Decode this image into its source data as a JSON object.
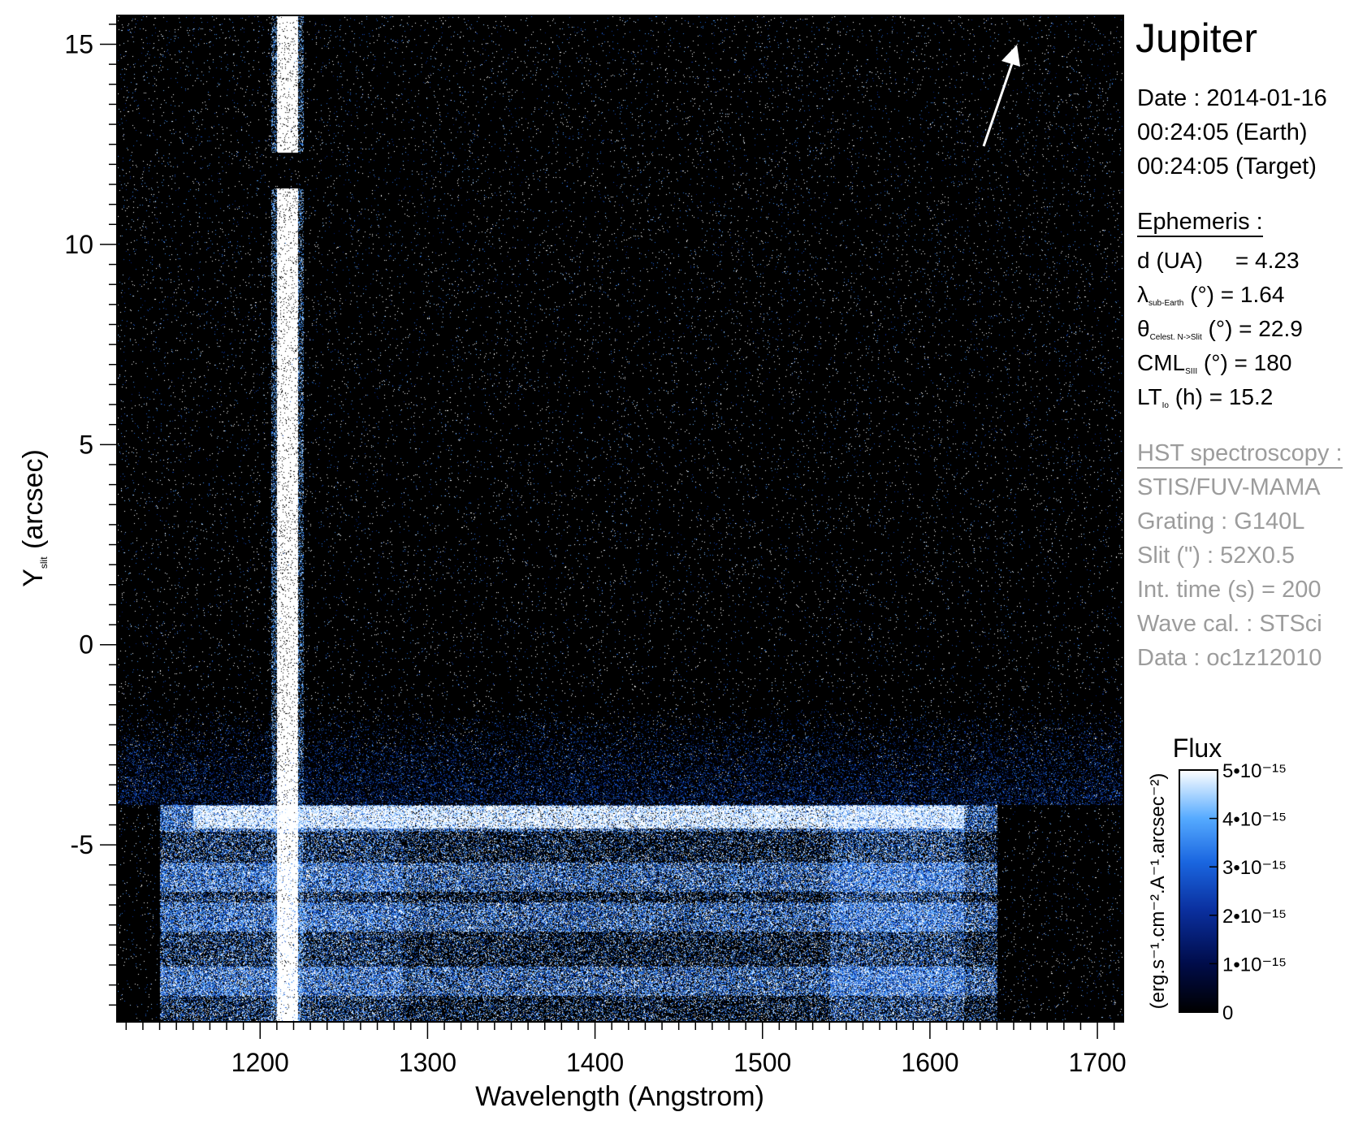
{
  "chart_data": {
    "type": "heatmap",
    "title": "Jupiter",
    "xlabel": "Wavelength (Angstrom)",
    "ylabel": "Y",
    "ylabel_sub": "slit",
    "ylabel_unit": " (arcsec)",
    "xlim": [
      1115,
      1715
    ],
    "ylim": [
      -9.4,
      15.7
    ],
    "x_ticks": [
      1200,
      1300,
      1400,
      1500,
      1600,
      1700
    ],
    "x_tick_labels": [
      "1200",
      "1300",
      "1400",
      "1500",
      "1600",
      "1700"
    ],
    "y_ticks": [
      15,
      10,
      5,
      0,
      -5
    ],
    "y_tick_labels": [
      "15",
      "10",
      "5",
      "0",
      "-5"
    ],
    "features": {
      "lyman_alpha_line_angstrom": 1216,
      "limb_band_y_arcsec": -4.3,
      "disk_region_y_arcsec": [
        -9.4,
        -4.0
      ],
      "bright_bands_y_arcsec": [
        -4.3,
        -5.8,
        -6.8,
        -8.4
      ],
      "slit_gap_y_arcsec": [
        11.4,
        12.3
      ]
    },
    "colorbar": {
      "label": "Flux",
      "units": "(erg.s⁻¹.cm⁻².A⁻¹.arcsec⁻²)",
      "range": [
        0,
        5e-15
      ],
      "tick_labels": [
        "0",
        "1•10⁻¹⁵",
        "2•10⁻¹⁵",
        "3•10⁻¹⁵",
        "4•10⁻¹⁵",
        "5•10⁻¹⁵"
      ],
      "colors": [
        "#000000",
        "#000c4a",
        "#0a2f9e",
        "#1a66e0",
        "#55aaff",
        "#ffffff"
      ]
    },
    "direction_arrow": "white north arrow, upper right"
  },
  "panel": {
    "title": "Jupiter",
    "date_line": "Date : 2014-01-16",
    "earth_time": "00:24:05 (Earth)",
    "target_time": "00:24:05 (Target)",
    "ephemeris_header": "Ephemeris :",
    "eph": {
      "d_label": "d (UA)",
      "d_value": "= 4.23",
      "lambda_sym": "λ",
      "lambda_sub": "sub-Earth",
      "lambda_rest": " (°)  = 1.64",
      "theta_sym": "θ",
      "theta_sub": "Celest. N->Slit",
      "theta_rest": " (°) = 22.9",
      "cml_sym": "CML",
      "cml_sub": "SIII",
      "cml_rest": " (°) = 180",
      "lt_sym": "LT",
      "lt_sub": "Io",
      "lt_rest": " (h) = 15.2"
    },
    "hst_header": "HST spectroscopy :",
    "instrument": "STIS/FUV-MAMA",
    "grating": "Grating : G140L",
    "slit": "Slit (\") : 52X0.5",
    "int_time": "Int. time (s) = 200",
    "wave_cal": "Wave cal. : STSci",
    "data_id": "Data : oc1z12010"
  },
  "colors": {
    "text_main": "#000000",
    "text_grey": "#9c9c9c",
    "background": "#ffffff"
  }
}
